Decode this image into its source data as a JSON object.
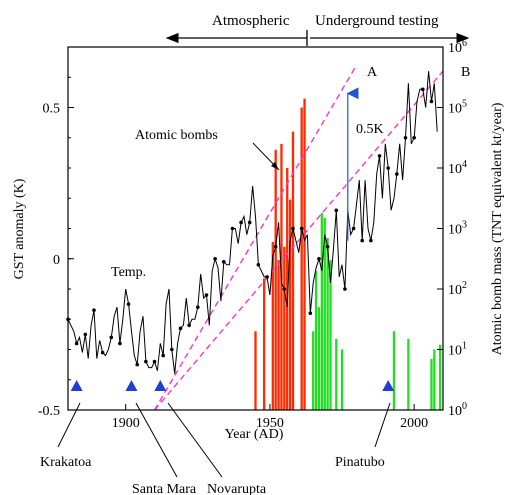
{
  "chart_data": {
    "type": "line",
    "title": "",
    "xlabel": "Year (AD)",
    "ylabel_left": "GST anomaly (K)",
    "ylabel_right": "Atomic bomb mass (TNT equivalent kt/year)",
    "xlim": [
      1880,
      2010
    ],
    "x_ticks": [
      1900,
      1950,
      2000
    ],
    "ylim_left": [
      -0.5,
      0.7
    ],
    "y_ticks_left": [
      -0.5,
      0,
      0.5
    ],
    "y_ticks_left_labels": [
      "-0.5",
      "0",
      "0.5"
    ],
    "yscale_right": "log",
    "ylim_right": [
      1,
      1000000
    ],
    "y_ticks_right": [
      1,
      10,
      100,
      1000,
      10000,
      100000,
      1000000
    ],
    "y_ticks_right_labels": [
      [
        "10",
        "0"
      ],
      [
        "10",
        "1"
      ],
      [
        "10",
        "2"
      ],
      [
        "10",
        "3"
      ],
      [
        "10",
        "4"
      ],
      [
        "10",
        "5"
      ],
      [
        "10",
        "6"
      ]
    ],
    "series": [
      {
        "name": "Temp.",
        "axis": "left",
        "color": "#000000",
        "x": [
          1880,
          1881,
          1882,
          1883,
          1884,
          1885,
          1886,
          1887,
          1888,
          1889,
          1890,
          1891,
          1892,
          1893,
          1894,
          1895,
          1896,
          1897,
          1898,
          1899,
          1900,
          1901,
          1902,
          1903,
          1904,
          1905,
          1906,
          1907,
          1908,
          1909,
          1910,
          1911,
          1912,
          1913,
          1914,
          1915,
          1916,
          1917,
          1918,
          1919,
          1920,
          1921,
          1922,
          1923,
          1924,
          1925,
          1926,
          1927,
          1928,
          1929,
          1930,
          1931,
          1932,
          1933,
          1934,
          1935,
          1936,
          1937,
          1938,
          1939,
          1940,
          1941,
          1942,
          1943,
          1944,
          1945,
          1946,
          1947,
          1948,
          1949,
          1950,
          1951,
          1952,
          1953,
          1954,
          1955,
          1956,
          1957,
          1958,
          1959,
          1960,
          1961,
          1962,
          1963,
          1964,
          1965,
          1966,
          1967,
          1968,
          1969,
          1970,
          1971,
          1972,
          1973,
          1974,
          1975,
          1976,
          1977,
          1978,
          1979,
          1980,
          1981,
          1982,
          1983,
          1984,
          1985,
          1986,
          1987,
          1988,
          1989,
          1990,
          1991,
          1992,
          1993,
          1994,
          1995,
          1996,
          1997,
          1998,
          1999,
          2000,
          2001,
          2002,
          2003,
          2004,
          2005,
          2006,
          2007,
          2008
        ],
        "y": [
          -0.2,
          -0.22,
          -0.24,
          -0.28,
          -0.26,
          -0.31,
          -0.25,
          -0.33,
          -0.22,
          -0.17,
          -0.33,
          -0.27,
          -0.31,
          -0.32,
          -0.3,
          -0.26,
          -0.19,
          -0.16,
          -0.28,
          -0.2,
          -0.1,
          -0.15,
          -0.24,
          -0.32,
          -0.35,
          -0.24,
          -0.19,
          -0.34,
          -0.36,
          -0.36,
          -0.34,
          -0.37,
          -0.28,
          -0.32,
          -0.15,
          -0.1,
          -0.3,
          -0.38,
          -0.28,
          -0.23,
          -0.22,
          -0.13,
          -0.22,
          -0.2,
          -0.2,
          -0.16,
          -0.05,
          -0.13,
          -0.12,
          -0.22,
          -0.04,
          0.0,
          -0.03,
          -0.14,
          -0.01,
          -0.02,
          -0.02,
          0.1,
          0.1,
          0.05,
          0.12,
          0.14,
          0.08,
          0.12,
          0.24,
          0.14,
          -0.02,
          -0.04,
          -0.06,
          -0.06,
          -0.12,
          0.01,
          0.04,
          0.12,
          -0.08,
          -0.1,
          -0.16,
          0.06,
          0.1,
          0.06,
          0.02,
          0.1,
          0.06,
          0.08,
          -0.18,
          -0.08,
          -0.03,
          0.0,
          -0.04,
          0.08,
          0.04,
          -0.08,
          0.03,
          0.16,
          -0.06,
          -0.02,
          -0.1,
          0.16,
          0.08,
          0.1,
          0.18,
          0.26,
          0.06,
          0.26,
          0.1,
          0.06,
          0.12,
          0.28,
          0.34,
          0.2,
          0.38,
          0.3,
          0.16,
          0.2,
          0.28,
          0.38,
          0.26,
          0.4,
          0.58,
          0.38,
          0.4,
          0.52,
          0.56,
          0.56,
          0.5,
          0.62,
          0.52,
          0.58,
          0.42
        ]
      }
    ],
    "bars": {
      "name": "Atomic bombs",
      "axis": "right",
      "atmospheric_color": "#ff2a00",
      "underground_color": "#22dd22",
      "atmospheric": [
        [
          1945,
          20
        ],
        [
          1948,
          150
        ],
        [
          1951,
          600
        ],
        [
          1952,
          20000
        ],
        [
          1953,
          300
        ],
        [
          1954,
          25000
        ],
        [
          1955,
          500
        ],
        [
          1956,
          10000
        ],
        [
          1957,
          3000
        ],
        [
          1958,
          40000
        ],
        [
          1961,
          100000
        ],
        [
          1962,
          140000
        ]
      ],
      "underground": [
        [
          1965,
          20
        ],
        [
          1966,
          200
        ],
        [
          1967,
          50
        ],
        [
          1968,
          1800
        ],
        [
          1969,
          1500
        ],
        [
          1970,
          700
        ],
        [
          1971,
          300
        ],
        [
          1973,
          15
        ],
        [
          1975,
          10
        ],
        [
          1993,
          20
        ],
        [
          1998,
          15
        ],
        [
          2006,
          7
        ],
        [
          2007,
          10
        ],
        [
          2009,
          12
        ]
      ]
    },
    "trend_lines": [
      {
        "label": "A",
        "color": "#ff33cc",
        "x": [
          1910,
          1980
        ],
        "y_log": [
          1,
          500000
        ]
      },
      {
        "label": "B",
        "color": "#ff33cc",
        "x": [
          1910,
          2010
        ],
        "y_log": [
          1,
          400000
        ]
      }
    ],
    "arrow_label": "0.5K",
    "arrow": {
      "x": 1977,
      "y_from": 0.06,
      "y_to": 0.56,
      "color": "#2255cc"
    },
    "eruptions": {
      "color": "#1f3fd0",
      "items": [
        {
          "label": "Krakatoa",
          "year": 1883
        },
        {
          "label": "Santa Mara",
          "year": 1902
        },
        {
          "label": "Novarupta",
          "year": 1912
        },
        {
          "label": "Pinatubo",
          "year": 1991
        }
      ]
    },
    "period_labels": {
      "atmospheric": "Atmospheric",
      "underground": "Underground testing"
    },
    "annotation_atomic": "Atomic bombs",
    "annotation_temp": "Temp."
  }
}
